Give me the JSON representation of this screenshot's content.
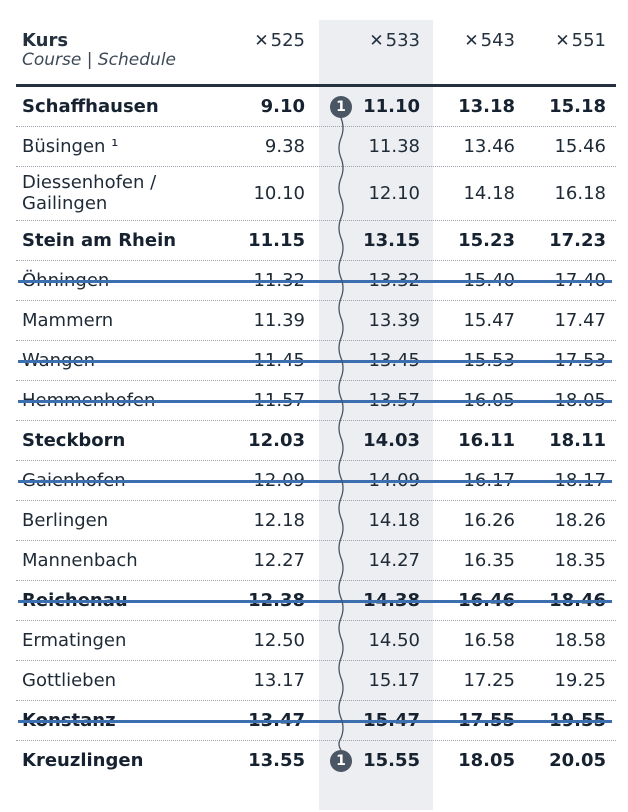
{
  "header": {
    "kurs_label": "Kurs",
    "course_label": "Course | Schedule",
    "courses": [
      {
        "icon": "ship-cross-icon",
        "num": "525"
      },
      {
        "icon": "ship-cross-icon",
        "num": "533"
      },
      {
        "icon": "ship-cross-icon",
        "num": "543"
      },
      {
        "icon": "ship-cross-icon",
        "num": "551"
      }
    ]
  },
  "stops": [
    {
      "name": "Schaffhausen",
      "times": [
        "9.10",
        "11.10",
        "13.18",
        "15.18"
      ],
      "bold": true,
      "struck": false,
      "badge": "1"
    },
    {
      "name": "Büsingen ¹",
      "times": [
        "9.38",
        "11.38",
        "13.46",
        "15.46"
      ],
      "bold": false,
      "struck": false
    },
    {
      "name": "Diessenhofen /\nGailingen",
      "times": [
        "10.10",
        "12.10",
        "14.18",
        "16.18"
      ],
      "bold": false,
      "struck": false
    },
    {
      "name": "Stein am Rhein",
      "times": [
        "11.15",
        "13.15",
        "15.23",
        "17.23"
      ],
      "bold": true,
      "struck": false
    },
    {
      "name": "Öhningen",
      "times": [
        "11.32",
        "13.32",
        "15.40",
        "17.40"
      ],
      "bold": false,
      "struck": true
    },
    {
      "name": "Mammern",
      "times": [
        "11.39",
        "13.39",
        "15.47",
        "17.47"
      ],
      "bold": false,
      "struck": false
    },
    {
      "name": "Wangen",
      "times": [
        "11.45",
        "13.45",
        "15.53",
        "17.53"
      ],
      "bold": false,
      "struck": true
    },
    {
      "name": "Hemmenhofen",
      "times": [
        "11.57",
        "13.57",
        "16.05",
        "18.05"
      ],
      "bold": false,
      "struck": true
    },
    {
      "name": "Steckborn",
      "times": [
        "12.03",
        "14.03",
        "16.11",
        "18.11"
      ],
      "bold": true,
      "struck": false
    },
    {
      "name": "Gaienhofen",
      "times": [
        "12.09",
        "14.09",
        "16.17",
        "18.17"
      ],
      "bold": false,
      "struck": true
    },
    {
      "name": "Berlingen",
      "times": [
        "12.18",
        "14.18",
        "16.26",
        "18.26"
      ],
      "bold": false,
      "struck": false
    },
    {
      "name": "Mannenbach",
      "times": [
        "12.27",
        "14.27",
        "16.35",
        "18.35"
      ],
      "bold": false,
      "struck": false
    },
    {
      "name": "Reichenau",
      "times": [
        "12.38",
        "14.38",
        "16.46",
        "18.46"
      ],
      "bold": true,
      "struck": true
    },
    {
      "name": "Ermatingen",
      "times": [
        "12.50",
        "14.50",
        "16.58",
        "18.58"
      ],
      "bold": false,
      "struck": false
    },
    {
      "name": "Gottlieben",
      "times": [
        "13.17",
        "15.17",
        "17.25",
        "19.25"
      ],
      "bold": false,
      "struck": false
    },
    {
      "name": "Konstanz",
      "times": [
        "13.47",
        "15.47",
        "17.55",
        "19.55"
      ],
      "bold": true,
      "struck": true
    },
    {
      "name": "Kreuzlingen",
      "times": [
        "13.55",
        "15.55",
        "18.05",
        "20.05"
      ],
      "bold": true,
      "struck": false,
      "badge": "1"
    }
  ],
  "colors": {
    "text": "#1e2a36",
    "highlight_band": "#eceef1",
    "strike": "#3c6fb0",
    "badge": "#4a5663"
  }
}
